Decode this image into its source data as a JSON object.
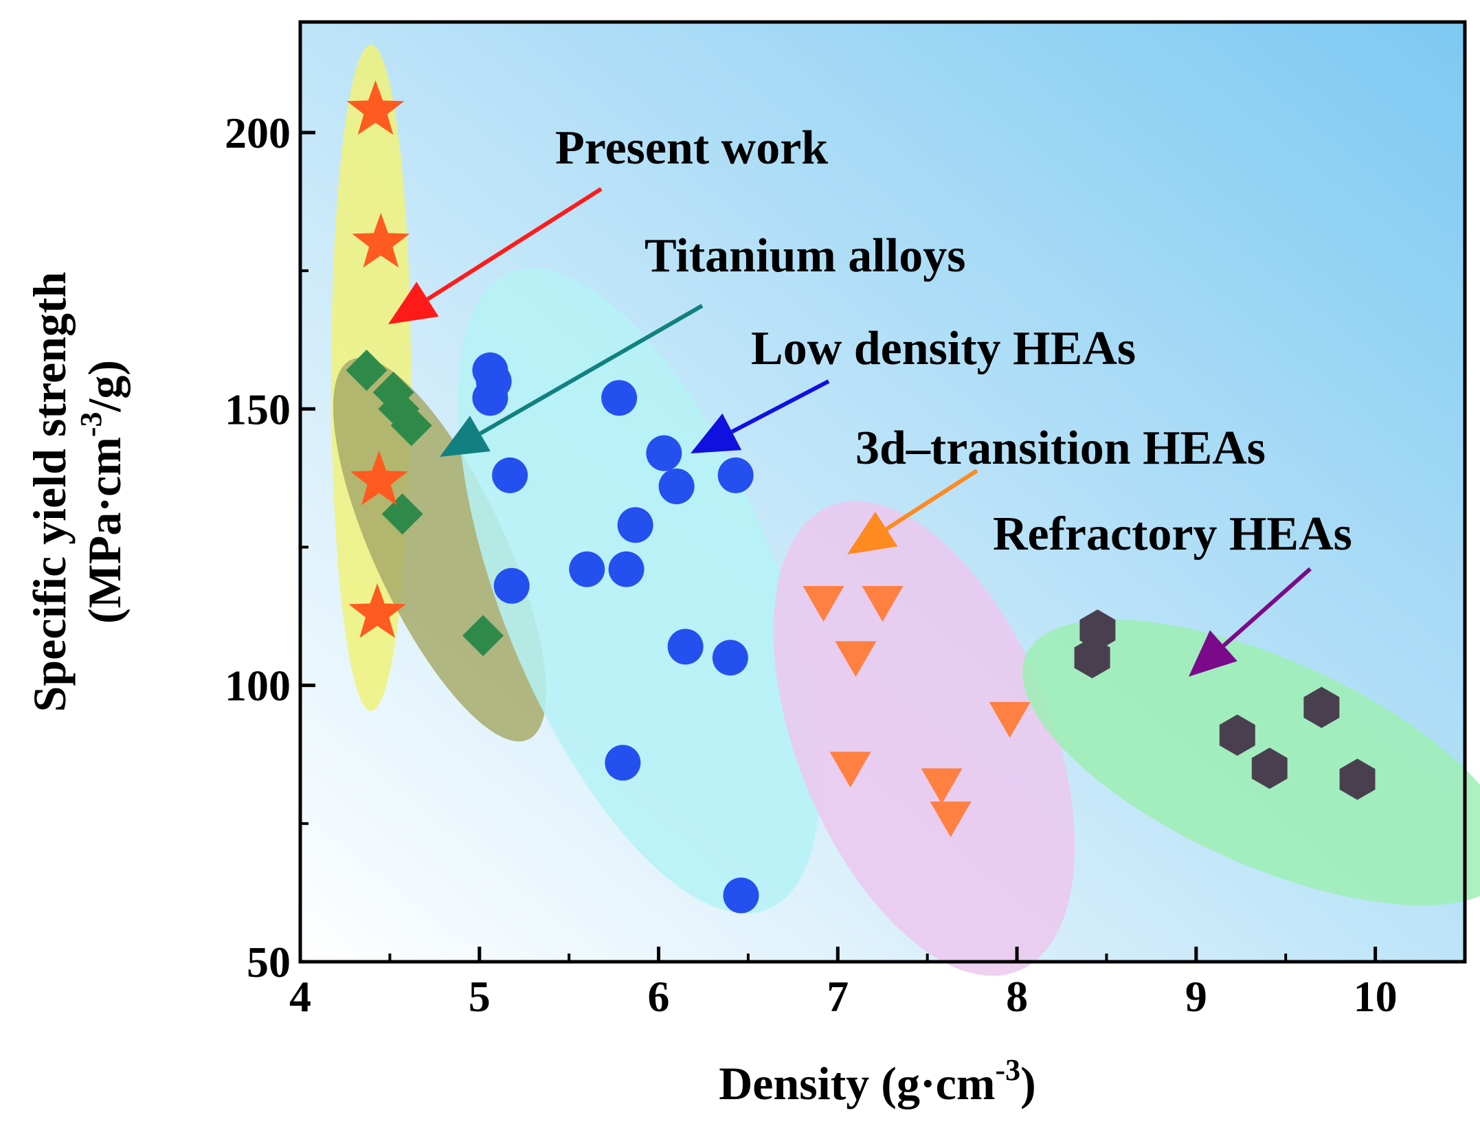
{
  "chart_data": {
    "type": "scatter",
    "xlabel": "Density (g·cm",
    "xlabel_sup": "-3",
    "xlabel_end": ")",
    "ylabel_line1": "Specific yield strength",
    "ylabel_line2_pre": "(MPa·cm",
    "ylabel_line2_sup": "-3",
    "ylabel_line2_post": "/g)",
    "xlim": [
      4,
      10.5
    ],
    "ylim": [
      50,
      220
    ],
    "x_ticks": [
      4,
      5,
      6,
      7,
      8,
      9,
      10
    ],
    "y_ticks": [
      50,
      100,
      150,
      200
    ],
    "x_tick_labels": [
      "4",
      "5",
      "6",
      "7",
      "8",
      "9",
      "10"
    ],
    "y_tick_labels": [
      "50",
      "100",
      "150",
      "200"
    ],
    "background_gradient": [
      "#ffffff",
      "#7dc9f2"
    ],
    "series": [
      {
        "name": "Present work",
        "marker": "star",
        "color": "#ff5a1f",
        "ellipse_color": "#f0f27a",
        "arrow_color": "#ff1a1a",
        "points": [
          [
            4.42,
            204
          ],
          [
            4.45,
            180
          ],
          [
            4.44,
            137
          ],
          [
            4.43,
            113
          ]
        ]
      },
      {
        "name": "Titanium alloys",
        "marker": "diamond",
        "color": "#2f8a4a",
        "ellipse_color": "#a8ac6a",
        "arrow_color": "#128080",
        "points": [
          [
            4.37,
            157
          ],
          [
            4.52,
            153
          ],
          [
            4.55,
            150
          ],
          [
            4.62,
            147
          ],
          [
            4.57,
            131
          ],
          [
            5.02,
            109
          ]
        ]
      },
      {
        "name": "Low density HEAs",
        "marker": "circle",
        "color": "#2450f0",
        "ellipse_color": "#b5f2f6",
        "arrow_color": "#1010e0",
        "points": [
          [
            5.06,
            157
          ],
          [
            5.08,
            155
          ],
          [
            5.06,
            152
          ],
          [
            5.17,
            138
          ],
          [
            5.18,
            118
          ],
          [
            5.6,
            121
          ],
          [
            5.78,
            152
          ],
          [
            5.82,
            121
          ],
          [
            5.87,
            129
          ],
          [
            6.03,
            142
          ],
          [
            6.1,
            136
          ],
          [
            6.15,
            107
          ],
          [
            6.4,
            105
          ],
          [
            6.43,
            138
          ],
          [
            5.8,
            86
          ],
          [
            6.46,
            62
          ]
        ]
      },
      {
        "name": "3d–transition HEAs",
        "marker": "triangle-down",
        "color": "#ff8040",
        "ellipse_color": "#ecc8ee",
        "arrow_color": "#ff8a20",
        "points": [
          [
            6.92,
            115
          ],
          [
            7.25,
            115
          ],
          [
            7.1,
            105
          ],
          [
            7.07,
            85
          ],
          [
            7.58,
            82
          ],
          [
            7.63,
            76
          ],
          [
            7.96,
            94
          ]
        ]
      },
      {
        "name": "Refractory HEAs",
        "marker": "hexagon",
        "color": "#4a3f4f",
        "ellipse_color": "#9eeeb4",
        "arrow_color": "#7a0a8a",
        "points": [
          [
            8.45,
            110
          ],
          [
            8.42,
            105
          ],
          [
            9.23,
            91
          ],
          [
            9.41,
            85
          ],
          [
            9.7,
            96
          ],
          [
            9.9,
            83
          ]
        ]
      }
    ],
    "annotations": [
      {
        "text": "Present work",
        "series": "Present work"
      },
      {
        "text": "Titanium alloys",
        "series": "Titanium alloys"
      },
      {
        "text": "Low density HEAs",
        "series": "Low density HEAs"
      },
      {
        "text": "3d–transition HEAs",
        "series": "3d–transition HEAs"
      },
      {
        "text": "Refractory HEAs",
        "series": "Refractory HEAs"
      }
    ]
  }
}
